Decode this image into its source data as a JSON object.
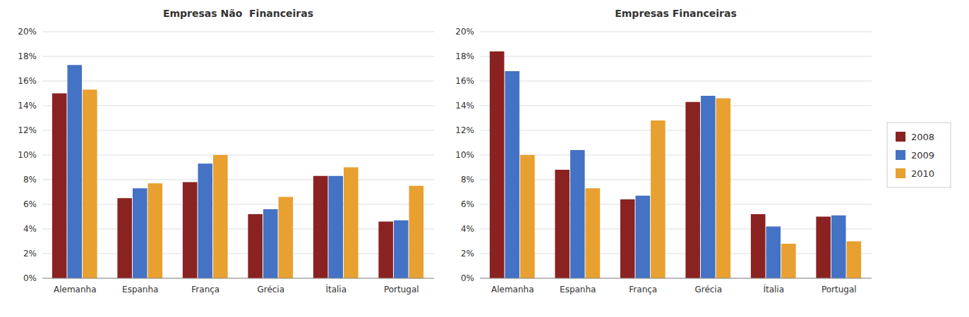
{
  "chart_data": [
    {
      "type": "bar",
      "title": "Empresas Não  Financeiras",
      "categories": [
        "Alemanha",
        "Espanha",
        "França",
        "Grécia",
        "Ítalia",
        "Portugal"
      ],
      "series": [
        {
          "name": "2008",
          "color": "#8B2222",
          "values": [
            0.15,
            0.065,
            0.078,
            0.052,
            0.083,
            0.046
          ]
        },
        {
          "name": "2009",
          "color": "#4472C4",
          "values": [
            0.173,
            0.073,
            0.093,
            0.056,
            0.083,
            0.047
          ]
        },
        {
          "name": "2010",
          "color": "#E8A030",
          "values": [
            0.153,
            0.077,
            0.1,
            0.066,
            0.09,
            0.075
          ]
        }
      ],
      "ylim": [
        0,
        0.2
      ],
      "yticks": [
        {
          "value": 0.0,
          "label": "0%"
        },
        {
          "value": 0.02,
          "label": "2%"
        },
        {
          "value": 0.04,
          "label": "4%"
        },
        {
          "value": 0.06,
          "label": "6%"
        },
        {
          "value": 0.08,
          "label": "8%"
        },
        {
          "value": 0.1,
          "label": "10%"
        },
        {
          "value": 0.12,
          "label": "12%"
        },
        {
          "value": 0.14,
          "label": "14%"
        },
        {
          "value": 0.16,
          "label": "16%"
        },
        {
          "value": 0.18,
          "label": "18%"
        },
        {
          "value": 0.2,
          "label": "20%"
        }
      ],
      "grid": true
    },
    {
      "type": "bar",
      "title": "Empresas Financeiras",
      "categories": [
        "Alemanha",
        "Espanha",
        "França",
        "Grécia",
        "Ítalia",
        "Portugal"
      ],
      "series": [
        {
          "name": "2008",
          "color": "#8B2222",
          "values": [
            0.184,
            0.088,
            0.064,
            0.143,
            0.052,
            0.05
          ]
        },
        {
          "name": "2009",
          "color": "#4472C4",
          "values": [
            0.168,
            0.104,
            0.067,
            0.148,
            0.042,
            0.051
          ]
        },
        {
          "name": "2010",
          "color": "#E8A030",
          "values": [
            0.1,
            0.073,
            0.128,
            0.146,
            0.028,
            0.03
          ]
        }
      ],
      "ylim": [
        0,
        0.2
      ],
      "yticks": [
        {
          "value": 0.0,
          "label": "0%"
        },
        {
          "value": 0.02,
          "label": "2%"
        },
        {
          "value": 0.04,
          "label": "4%"
        },
        {
          "value": 0.06,
          "label": "6%"
        },
        {
          "value": 0.08,
          "label": "8%"
        },
        {
          "value": 0.1,
          "label": "10%"
        },
        {
          "value": 0.12,
          "label": "12%"
        },
        {
          "value": 0.14,
          "label": "14%"
        },
        {
          "value": 0.16,
          "label": "16%"
        },
        {
          "value": 0.18,
          "label": "18%"
        },
        {
          "value": 0.2,
          "label": "20%"
        }
      ],
      "grid": true,
      "legend": "right"
    }
  ]
}
